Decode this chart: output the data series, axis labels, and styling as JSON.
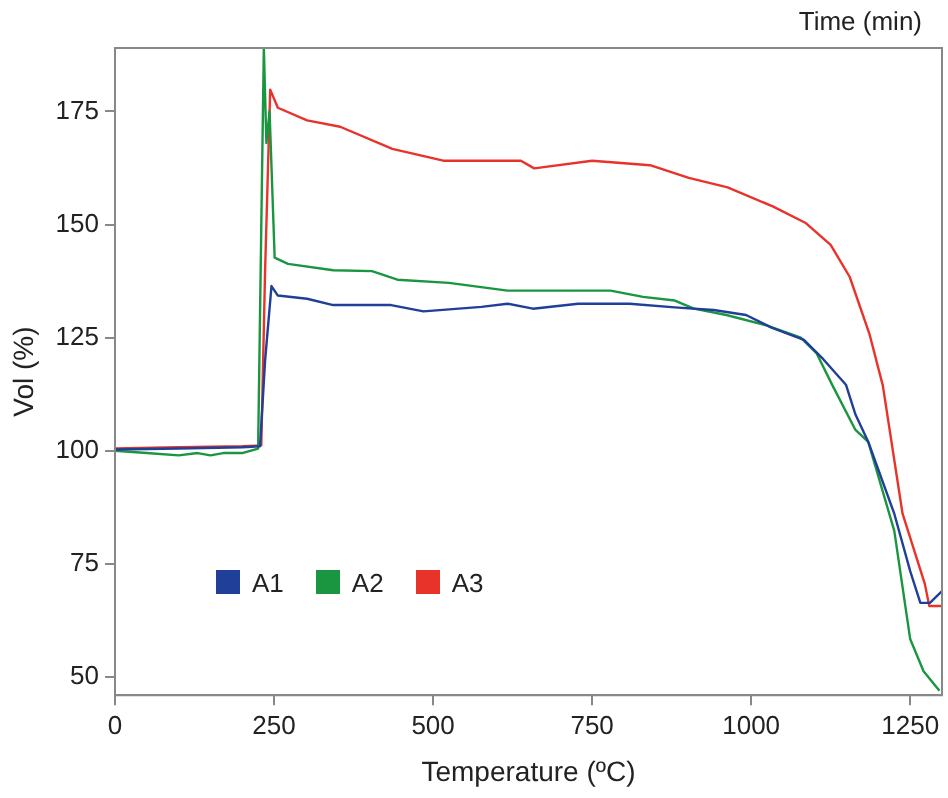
{
  "chart_data": {
    "type": "line",
    "xlabel": "Temperature (ºC)",
    "ylabel": "Vol (%)",
    "annotations": [
      "Time (min)"
    ],
    "xlim": [
      0,
      1300
    ],
    "ylim": [
      46,
      189
    ],
    "xticks": [
      0,
      250,
      500,
      750,
      1000,
      1250
    ],
    "yticks": [
      50,
      75,
      100,
      125,
      150,
      175
    ],
    "grid": false,
    "legend": "bottom left",
    "marker": "none",
    "line_style": "solid",
    "series": [
      {
        "name": "A1",
        "color": "#1f3f99",
        "x": [
          0,
          100,
          200,
          228,
          236,
          246,
          256,
          302,
          343,
          434,
          485,
          576,
          617,
          657,
          728,
          809,
          880,
          941,
          992,
          1032,
          1083,
          1113,
          1149,
          1164,
          1184,
          1225,
          1250,
          1266,
          1281,
          1300
        ],
        "values": [
          100.3,
          100.5,
          100.8,
          101,
          120,
          136.4,
          134.3,
          133.6,
          132.2,
          132.2,
          130.8,
          131.8,
          132.5,
          131.4,
          132.5,
          132.5,
          131.7,
          131.1,
          130,
          127.2,
          124.5,
          120.3,
          114.6,
          108,
          102,
          86.1,
          73.4,
          66.4,
          66.4,
          69
        ]
      },
      {
        "name": "A2",
        "color": "#1a9641",
        "x": [
          0,
          50,
          100,
          130,
          150,
          170,
          200,
          225,
          234,
          238,
          243,
          251,
          272,
          343,
          404,
          444,
          525,
          617,
          779,
          830,
          880,
          910,
          961,
          1022,
          1078,
          1103,
          1128,
          1164,
          1184,
          1225,
          1250,
          1271,
          1296
        ],
        "values": [
          100,
          99.5,
          99,
          99.5,
          99,
          99.5,
          99.5,
          100.5,
          189,
          168,
          175,
          142.7,
          141.3,
          139.9,
          139.7,
          137.8,
          137.1,
          135.4,
          135.4,
          134,
          133.2,
          131.4,
          130,
          127.8,
          125,
          121.5,
          114.4,
          104.6,
          102,
          82.3,
          58.4,
          51.3,
          47
        ]
      },
      {
        "name": "A3",
        "color": "#e8332a",
        "x": [
          0,
          100,
          200,
          230,
          236,
          244,
          256,
          302,
          354,
          436,
          516,
          638,
          659,
          750,
          841,
          902,
          963,
          1034,
          1085,
          1125,
          1155,
          1186,
          1207,
          1238,
          1273,
          1280,
          1300
        ],
        "values": [
          100.5,
          100.8,
          101,
          101.2,
          140,
          179.8,
          175.8,
          173,
          171.6,
          166.7,
          164.1,
          164.1,
          162.4,
          164.1,
          163.1,
          160.3,
          158.2,
          154,
          150.4,
          145.5,
          138.4,
          125.8,
          114.4,
          86.1,
          70.6,
          65.7,
          65.7
        ]
      }
    ]
  }
}
